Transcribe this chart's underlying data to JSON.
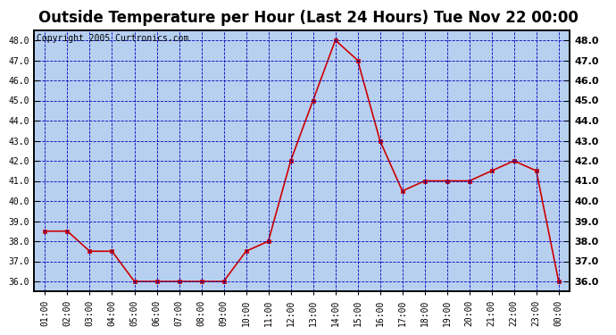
{
  "title": "Outside Temperature per Hour (Last 24 Hours) Tue Nov 22 00:00",
  "copyright": "Copyright 2005 Curtronics.com",
  "hours": [
    "01:00",
    "02:00",
    "03:00",
    "04:00",
    "05:00",
    "06:00",
    "07:00",
    "08:00",
    "09:00",
    "10:00",
    "11:00",
    "12:00",
    "13:00",
    "14:00",
    "15:00",
    "16:00",
    "17:00",
    "18:00",
    "19:00",
    "20:00",
    "21:00",
    "22:00",
    "23:00",
    "00:00"
  ],
  "y_values": [
    38.5,
    38.5,
    37.5,
    37.5,
    36.0,
    36.0,
    36.0,
    36.0,
    36.0,
    37.5,
    38.0,
    42.0,
    45.0,
    48.0,
    47.0,
    43.0,
    40.5,
    41.0,
    41.0,
    41.0,
    41.5,
    42.0,
    41.5,
    36.0
  ],
  "ylim_min": 35.5,
  "ylim_max": 48.5,
  "yticks": [
    36.0,
    37.0,
    38.0,
    39.0,
    40.0,
    41.0,
    42.0,
    43.0,
    44.0,
    45.0,
    46.0,
    47.0,
    48.0
  ],
  "line_color": "#cc0000",
  "plot_bg": "#b8d0f0",
  "outer_bg": "#ffffff",
  "grid_color": "#0000bb",
  "title_fontsize": 12,
  "tick_fontsize": 7,
  "copyright_fontsize": 7
}
